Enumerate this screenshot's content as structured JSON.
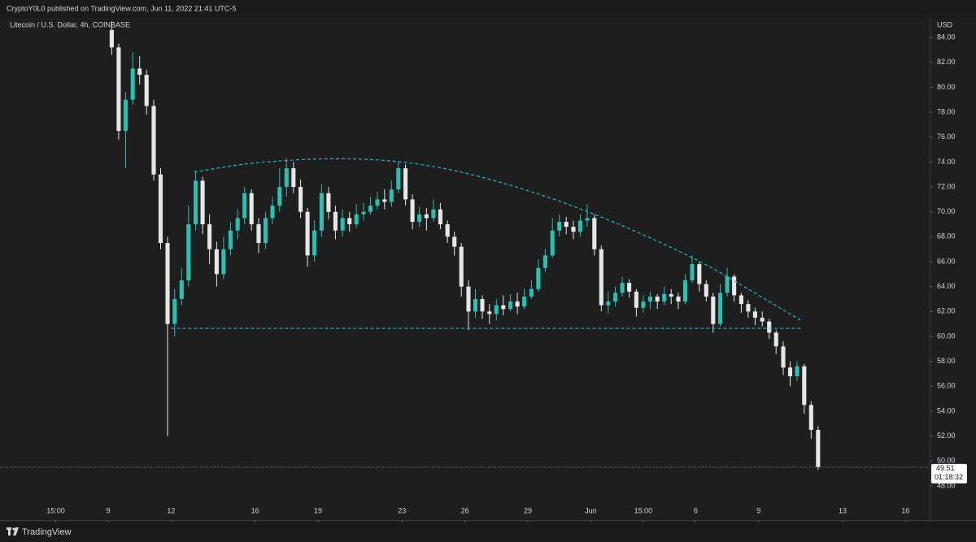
{
  "header": {
    "publisher": "CryptoY0L0 published on TradingView.com, Jun 11, 2022 21:41 UTC-5"
  },
  "chart_data": {
    "type": "candlestick",
    "title": "Litecoin / U.S. Dollar, 4h, COINBASE",
    "y_axis_label": "USD",
    "up_color": "#2bbfb3",
    "down_color": "#e6e6e6",
    "countdown": "01:18:32",
    "xlim": [
      -5.155,
      39.147
    ],
    "ylim": [
      45.26,
      85.57
    ],
    "xticks": [
      {
        "value": -2.5,
        "label": "15:00"
      },
      {
        "value": 0,
        "label": "9"
      },
      {
        "value": 3,
        "label": "12"
      },
      {
        "value": 7,
        "label": "16"
      },
      {
        "value": 10,
        "label": "19"
      },
      {
        "value": 14,
        "label": "23"
      },
      {
        "value": 17,
        "label": "26"
      },
      {
        "value": 20,
        "label": "29"
      },
      {
        "value": 23,
        "label": "Jun"
      },
      {
        "value": 25.5,
        "label": "15:00"
      },
      {
        "value": 28,
        "label": "6"
      },
      {
        "value": 31,
        "label": "9"
      },
      {
        "value": 35,
        "label": "13"
      },
      {
        "value": 38,
        "label": "16"
      }
    ],
    "yticks": [
      {
        "value": 48,
        "label": "48.00"
      },
      {
        "value": 50,
        "label": "50.00"
      },
      {
        "value": 52,
        "label": "52.00"
      },
      {
        "value": 54,
        "label": "54.00"
      },
      {
        "value": 56,
        "label": "56.00"
      },
      {
        "value": 58,
        "label": "58.00"
      },
      {
        "value": 60,
        "label": "60.00"
      },
      {
        "value": 62,
        "label": "62.00"
      },
      {
        "value": 64,
        "label": "64.00"
      },
      {
        "value": 66,
        "label": "66.00"
      },
      {
        "value": 68,
        "label": "68.00"
      },
      {
        "value": 70,
        "label": "70.00"
      },
      {
        "value": 72,
        "label": "72.00"
      },
      {
        "value": 74,
        "label": "74.00"
      },
      {
        "value": 76,
        "label": "76.00"
      },
      {
        "value": 78,
        "label": "78.00"
      },
      {
        "value": 80,
        "label": "80.00"
      },
      {
        "value": 82,
        "label": "82.00"
      },
      {
        "value": 84,
        "label": "84.00"
      }
    ],
    "values": [
      [
        0.17,
        84.6,
        85.3,
        82.6,
        83.2
      ],
      [
        0.5,
        83.2,
        83.5,
        75.8,
        76.5
      ],
      [
        0.83,
        76.5,
        79.6,
        73.5,
        79
      ],
      [
        1.17,
        79,
        82.8,
        78.6,
        81.5
      ],
      [
        1.5,
        81.5,
        82.5,
        80.2,
        81
      ],
      [
        1.83,
        81,
        81.4,
        77.8,
        78.5
      ],
      [
        2.17,
        78.5,
        79,
        72.5,
        73
      ],
      [
        2.5,
        73,
        73.5,
        67,
        67.5
      ],
      [
        2.83,
        67.5,
        68,
        52,
        61
      ],
      [
        3.17,
        61,
        63.8,
        60,
        63
      ],
      [
        3.5,
        63,
        65.5,
        62.5,
        64.5
      ],
      [
        3.83,
        64.5,
        70.5,
        64,
        69
      ],
      [
        4.17,
        69,
        73.3,
        68.5,
        72.5
      ],
      [
        4.5,
        72.5,
        72.8,
        68.2,
        69
      ],
      [
        4.83,
        69,
        69.8,
        65.8,
        67
      ],
      [
        5.17,
        67,
        67.6,
        64,
        65
      ],
      [
        5.5,
        65,
        68,
        64.6,
        67
      ],
      [
        5.83,
        67,
        69.2,
        66.5,
        68.5
      ],
      [
        6.17,
        68.5,
        70.2,
        67.8,
        69.5
      ],
      [
        6.5,
        69.5,
        72,
        69,
        71.5
      ],
      [
        6.83,
        71.5,
        71.8,
        68.5,
        69
      ],
      [
        7.17,
        69,
        69.5,
        66.7,
        67.5
      ],
      [
        7.5,
        67.5,
        70,
        67,
        69.5
      ],
      [
        7.83,
        69.5,
        71.2,
        69,
        70.5
      ],
      [
        8.17,
        70.5,
        73.5,
        70,
        72
      ],
      [
        8.5,
        72,
        74.3,
        71.2,
        73.5
      ],
      [
        8.83,
        73.5,
        74,
        71.5,
        72
      ],
      [
        9.17,
        72,
        72.6,
        69.5,
        70
      ],
      [
        9.5,
        70,
        70.3,
        65.6,
        66.5
      ],
      [
        9.83,
        66.5,
        69.3,
        66,
        68.5
      ],
      [
        10.17,
        68.5,
        72.2,
        68,
        71.5
      ],
      [
        10.5,
        71.5,
        72,
        69.4,
        70
      ],
      [
        10.83,
        70,
        70.5,
        67.8,
        68.5
      ],
      [
        11.17,
        68.5,
        70.2,
        68,
        69.5
      ],
      [
        11.5,
        69.5,
        70,
        68.4,
        69
      ],
      [
        11.83,
        69,
        70.6,
        68.7,
        69.8
      ],
      [
        12.17,
        69.8,
        70.7,
        69.3,
        70
      ],
      [
        12.5,
        70,
        71.2,
        69.8,
        70.5
      ],
      [
        12.83,
        70.5,
        71.6,
        70.2,
        71
      ],
      [
        13.17,
        71,
        71.8,
        70.2,
        70.8
      ],
      [
        13.5,
        70.8,
        72.5,
        70.4,
        71.8
      ],
      [
        13.83,
        71.8,
        74,
        71.5,
        73.5
      ],
      [
        14.17,
        73.5,
        73.8,
        70.5,
        71
      ],
      [
        14.5,
        71,
        71.4,
        68.6,
        69.2
      ],
      [
        14.83,
        69.2,
        70.4,
        68.8,
        69.8
      ],
      [
        15.17,
        69.8,
        70.3,
        68.5,
        69.5
      ],
      [
        15.5,
        69.5,
        71,
        69.2,
        70.2
      ],
      [
        15.83,
        70.2,
        70.7,
        68.6,
        69
      ],
      [
        16.17,
        69,
        69.3,
        67.5,
        68
      ],
      [
        16.5,
        68,
        68.4,
        66.5,
        67.2
      ],
      [
        16.83,
        67.2,
        67.5,
        63.2,
        64
      ],
      [
        17.17,
        64,
        64.5,
        60.5,
        62
      ],
      [
        17.5,
        62,
        63.8,
        61.5,
        63
      ],
      [
        17.83,
        63,
        63.3,
        61.4,
        62
      ],
      [
        18.17,
        62,
        62.6,
        61,
        61.8
      ],
      [
        18.5,
        61.8,
        63,
        61.3,
        62.5
      ],
      [
        18.83,
        62.5,
        63.3,
        61.7,
        62.2
      ],
      [
        19.17,
        62.2,
        63.4,
        62,
        62.8
      ],
      [
        19.5,
        62.8,
        63.5,
        61.8,
        62.4
      ],
      [
        19.83,
        62.4,
        63.8,
        62.2,
        63.2
      ],
      [
        20.17,
        63.2,
        64.5,
        63,
        63.8
      ],
      [
        20.5,
        63.8,
        66.2,
        63.6,
        65.5
      ],
      [
        20.83,
        65.5,
        67,
        65.2,
        66.5
      ],
      [
        21.17,
        66.5,
        69.5,
        66.3,
        68.5
      ],
      [
        21.5,
        68.5,
        69.8,
        68,
        69.2
      ],
      [
        21.83,
        69.2,
        69.6,
        68.2,
        68.8
      ],
      [
        22.17,
        68.8,
        69.3,
        67.8,
        68.4
      ],
      [
        22.5,
        68.4,
        69.8,
        68,
        69.3
      ],
      [
        22.83,
        69.3,
        70.6,
        68.8,
        69.5
      ],
      [
        23.17,
        69.5,
        69.8,
        66.5,
        67
      ],
      [
        23.5,
        67,
        67.3,
        62,
        62.5
      ],
      [
        23.83,
        62.5,
        63.6,
        61.8,
        62.8
      ],
      [
        24.17,
        62.8,
        64,
        62.4,
        63.5
      ],
      [
        24.5,
        63.5,
        64.8,
        63.2,
        64.3
      ],
      [
        24.83,
        64.3,
        64.6,
        63.1,
        63.6
      ],
      [
        25.17,
        63.6,
        63.8,
        61.6,
        62.3
      ],
      [
        25.5,
        62.3,
        63.3,
        61.9,
        62.8
      ],
      [
        25.83,
        62.8,
        63.6,
        62.2,
        63.2
      ],
      [
        26.17,
        63.2,
        63.4,
        62.2,
        62.8
      ],
      [
        26.5,
        62.8,
        64,
        62.5,
        63.4
      ],
      [
        26.83,
        63.4,
        63.8,
        62.6,
        63.2
      ],
      [
        27.17,
        63.2,
        63.5,
        62.2,
        62.8
      ],
      [
        27.5,
        62.8,
        65,
        62.6,
        64.5
      ],
      [
        27.83,
        64.5,
        66.5,
        64.3,
        65.8
      ],
      [
        28.17,
        65.8,
        66,
        63.6,
        64.2
      ],
      [
        28.5,
        64.2,
        64.5,
        62.8,
        63.2
      ],
      [
        28.83,
        63.2,
        63.5,
        60.3,
        61
      ],
      [
        29.17,
        61,
        64.2,
        60.8,
        63.5
      ],
      [
        29.5,
        63.5,
        65.5,
        63.2,
        64.8
      ],
      [
        29.83,
        64.8,
        65,
        62.8,
        63.3
      ],
      [
        30.17,
        63.3,
        63.5,
        61.9,
        62.6
      ],
      [
        30.5,
        62.6,
        62.9,
        61.5,
        62
      ],
      [
        30.83,
        62,
        62.3,
        60.9,
        61.5
      ],
      [
        31.17,
        61.5,
        62,
        60.8,
        61.2
      ],
      [
        31.5,
        61.2,
        61.4,
        59.8,
        60.3
      ],
      [
        31.83,
        60.3,
        60.5,
        58.6,
        59.2
      ],
      [
        32.17,
        59.2,
        59.6,
        56.9,
        57.5
      ],
      [
        32.5,
        57.5,
        58,
        56,
        56.8
      ],
      [
        32.83,
        56.8,
        58,
        56.4,
        57.6
      ],
      [
        33.17,
        57.6,
        57.8,
        53.8,
        54.5
      ],
      [
        33.5,
        54.5,
        54.8,
        51.8,
        52.5
      ],
      [
        33.83,
        52.5,
        52.8,
        49.3,
        49.51
      ]
    ],
    "drawings": [
      {
        "color": "#29b6c8",
        "points": [
          [
            4.1,
            73.2
          ],
          [
            7,
            74.0
          ],
          [
            11,
            74.35
          ],
          [
            14.5,
            74.0
          ],
          [
            18,
            72.8
          ],
          [
            22.75,
            70.2
          ],
          [
            28,
            66.3
          ],
          [
            31,
            63.3
          ],
          [
            33.1,
            61.2
          ]
        ]
      },
      {
        "color": "#29b6c8",
        "points": [
          [
            3.0,
            60.65
          ],
          [
            33.1,
            60.65
          ]
        ]
      }
    ]
  },
  "footer": {
    "brand": "TradingView"
  }
}
